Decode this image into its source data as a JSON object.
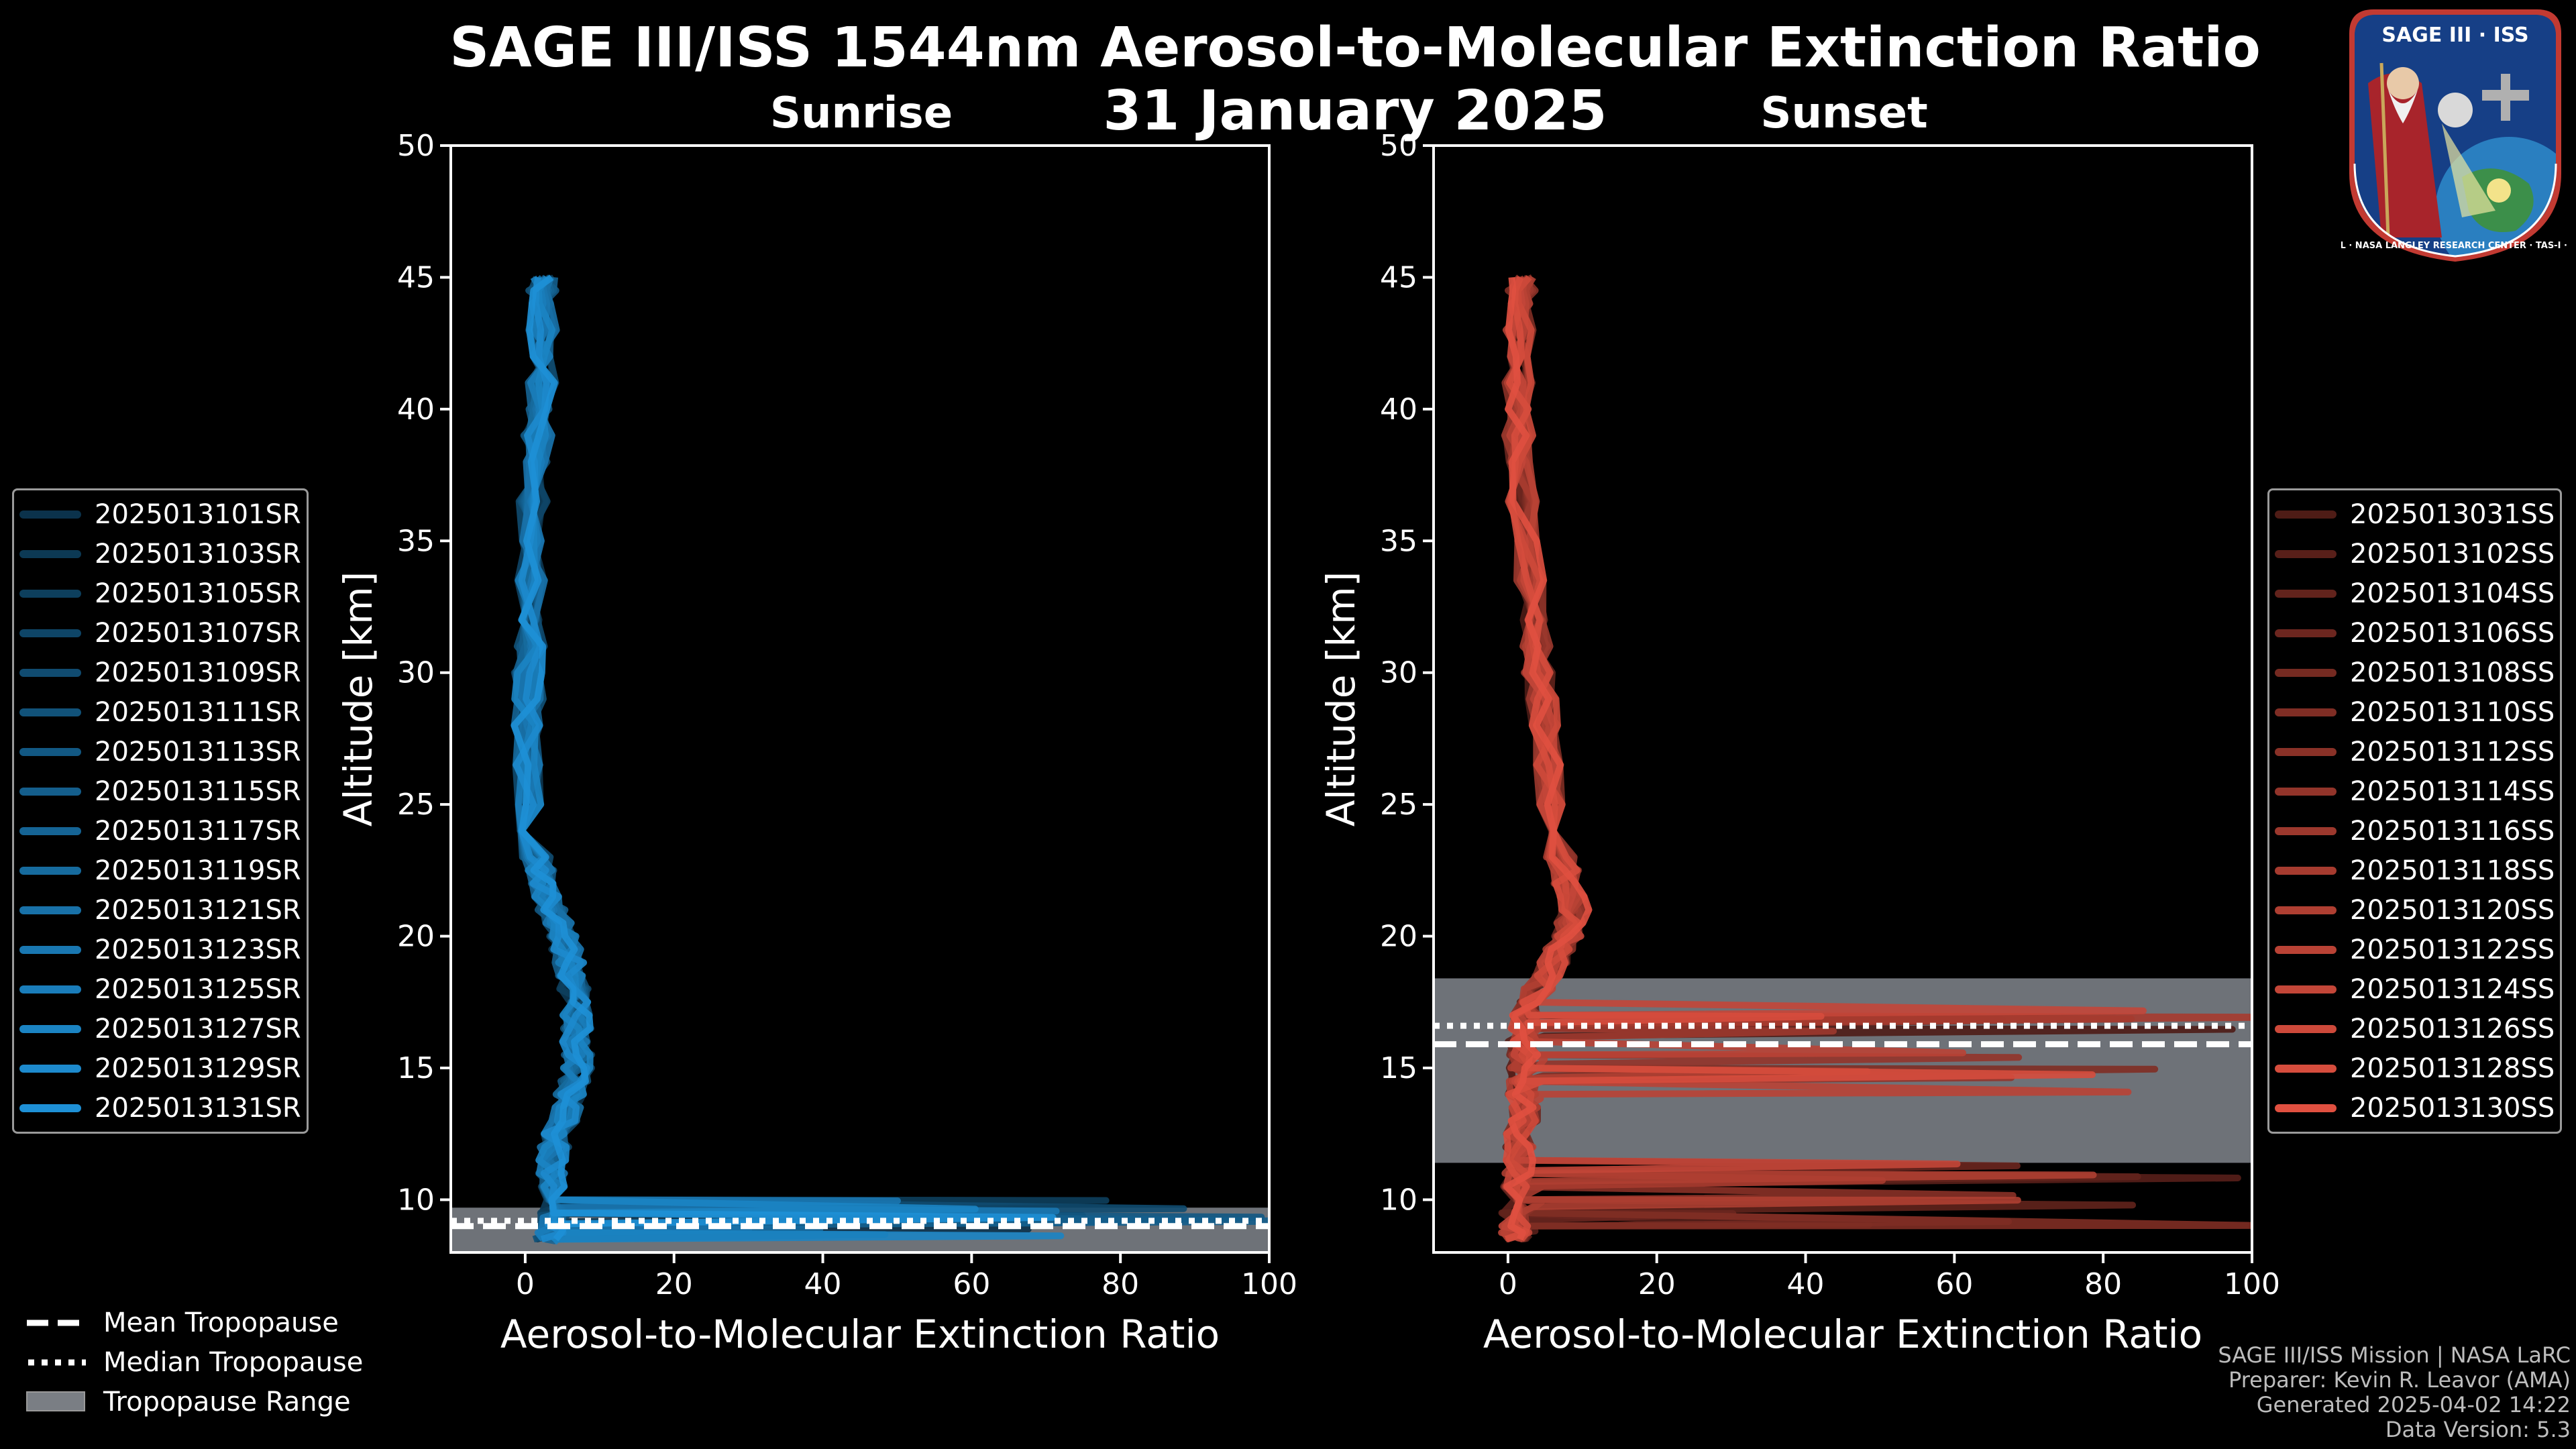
{
  "title_line1": "SAGE III/ISS 1544nm Aerosol-to-Molecular Extinction Ratio",
  "title_line2": "31 January 2025",
  "chart_data": [
    {
      "type": "line",
      "title": "Sunrise",
      "xlabel": "Aerosol-to-Molecular Extinction Ratio",
      "ylabel": "Altitude [km]",
      "xlim": [
        -10,
        100
      ],
      "ylim": [
        8,
        50
      ],
      "xticks": [
        0,
        20,
        40,
        60,
        80,
        100
      ],
      "yticks": [
        10,
        15,
        20,
        25,
        30,
        35,
        40,
        45
      ],
      "color": "#1e90d6",
      "tropopause": {
        "mean_km": 9.0,
        "median_km": 9.2,
        "range_km": [
          8.0,
          9.7
        ]
      },
      "profile_shape": {
        "altitude_km": [
          8.5,
          9,
          10,
          11,
          12,
          13,
          14,
          15,
          16,
          17,
          18,
          19,
          20,
          21,
          22,
          23,
          25,
          28,
          30,
          32,
          35,
          38,
          40,
          42,
          44,
          45
        ],
        "ratio": [
          3,
          4,
          4,
          3.5,
          4,
          5,
          6,
          7,
          7,
          7,
          6.5,
          6,
          5,
          3.5,
          2.5,
          1.5,
          0.8,
          0.5,
          0.5,
          0.8,
          0.8,
          1.5,
          2,
          2.5,
          2,
          2.5
        ]
      },
      "series": [
        {
          "name": "2025013101SR"
        },
        {
          "name": "2025013103SR"
        },
        {
          "name": "2025013105SR"
        },
        {
          "name": "2025013107SR"
        },
        {
          "name": "2025013109SR"
        },
        {
          "name": "2025013111SR"
        },
        {
          "name": "2025013113SR"
        },
        {
          "name": "2025013115SR"
        },
        {
          "name": "2025013117SR"
        },
        {
          "name": "2025013119SR"
        },
        {
          "name": "2025013121SR"
        },
        {
          "name": "2025013123SR"
        },
        {
          "name": "2025013125SR"
        },
        {
          "name": "2025013127SR"
        },
        {
          "name": "2025013129SR"
        },
        {
          "name": "2025013131SR"
        }
      ]
    },
    {
      "type": "line",
      "title": "Sunset",
      "xlabel": "Aerosol-to-Molecular Extinction Ratio",
      "ylabel": "Altitude [km]",
      "xlim": [
        -10,
        100
      ],
      "ylim": [
        8,
        50
      ],
      "xticks": [
        0,
        20,
        40,
        60,
        80,
        100
      ],
      "yticks": [
        10,
        15,
        20,
        25,
        30,
        35,
        40,
        45
      ],
      "color": "#e05040",
      "tropopause": {
        "mean_km": 15.9,
        "median_km": 16.6,
        "range_km": [
          11.4,
          18.4
        ]
      },
      "profile_shape": {
        "altitude_km": [
          8.5,
          9,
          10,
          11,
          12,
          13,
          14,
          15,
          16,
          17,
          18,
          19,
          20,
          21,
          22,
          23,
          25,
          28,
          30,
          32,
          35,
          38,
          40,
          42,
          44,
          45
        ],
        "ratio": [
          1,
          1,
          1,
          1.5,
          1.5,
          2,
          2,
          2,
          2,
          2.5,
          4,
          6,
          8,
          9,
          8,
          7,
          6,
          5,
          4,
          3.5,
          2.5,
          1.5,
          1.5,
          1.5,
          1.5,
          2
        ]
      },
      "series": [
        {
          "name": "2025013031SS"
        },
        {
          "name": "2025013102SS"
        },
        {
          "name": "2025013104SS"
        },
        {
          "name": "2025013106SS"
        },
        {
          "name": "2025013108SS"
        },
        {
          "name": "2025013110SS"
        },
        {
          "name": "2025013112SS"
        },
        {
          "name": "2025013114SS"
        },
        {
          "name": "2025013116SS"
        },
        {
          "name": "2025013118SS"
        },
        {
          "name": "2025013120SS"
        },
        {
          "name": "2025013122SS"
        },
        {
          "name": "2025013124SS"
        },
        {
          "name": "2025013126SS"
        },
        {
          "name": "2025013128SS"
        },
        {
          "name": "2025013130SS"
        }
      ]
    }
  ],
  "tropopause_legend": {
    "mean": "Mean Tropopause",
    "median": "Median Tropopause",
    "range": "Tropopause Range"
  },
  "credits": {
    "line1": "SAGE III/ISS Mission | NASA LaRC",
    "line2": "Preparer: Kevin R. Leavor (AMA)",
    "line3": "Generated 2025-04-02 14:22",
    "line4": "Data Version: 5.3"
  },
  "logo": {
    "title": "SAGE III · ISS",
    "ring_text": "BALL · NASA LANGLEY RESEARCH CENTER · TAS-I · ESA"
  }
}
